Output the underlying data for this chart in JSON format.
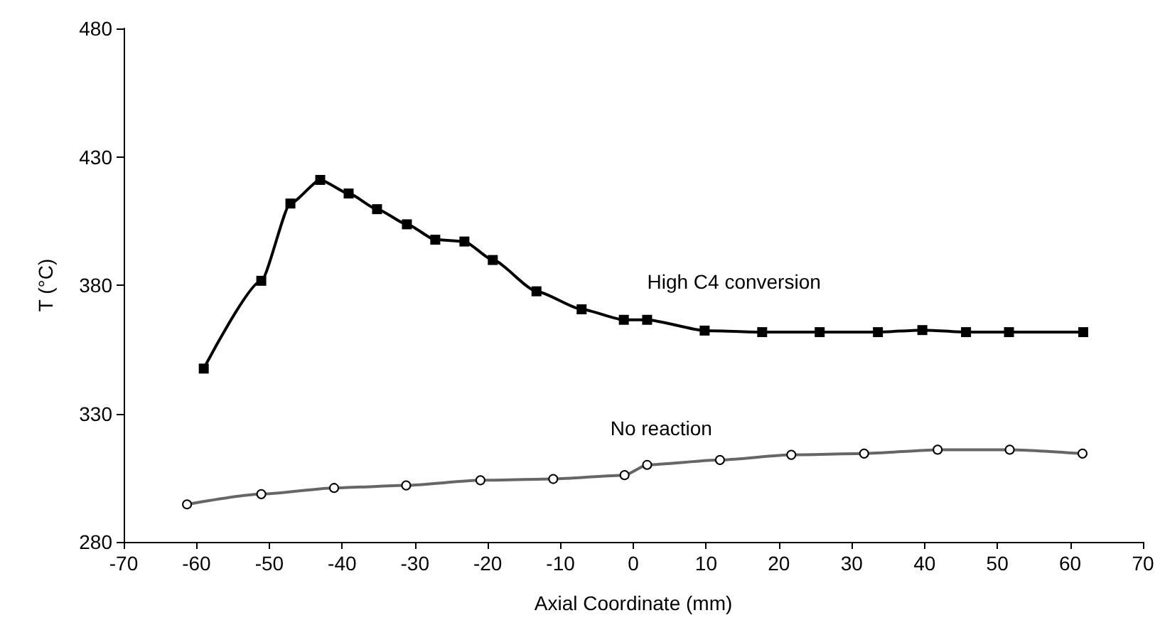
{
  "chart_data": {
    "type": "line",
    "xlabel": "Axial Coordinate (mm)",
    "ylabel": "T (°C)",
    "xlim": [
      -70,
      70
    ],
    "xticks": [
      -70,
      -60,
      -50,
      -40,
      -30,
      -20,
      -10,
      0,
      10,
      20,
      30,
      40,
      50,
      60,
      70
    ],
    "ylim": [
      280,
      480
    ],
    "yticks": [
      280,
      330,
      380,
      430,
      480
    ],
    "grid": false,
    "legend": false,
    "series": [
      {
        "name": "High C4 conversion",
        "color": "#000000",
        "marker": "square",
        "x": [
          -59.0,
          -51.1,
          -47.1,
          -43.0,
          -39.1,
          -35.2,
          -31.1,
          -27.2,
          -23.2,
          -19.3,
          -13.3,
          -7.1,
          -1.3,
          1.9,
          9.8,
          17.7,
          25.6,
          33.6,
          39.7,
          45.7,
          51.6,
          61.8
        ],
        "values": [
          347.5,
          381.7,
          411.8,
          421.0,
          415.7,
          409.6,
          403.7,
          397.7,
          397.0,
          389.8,
          377.6,
          370.6,
          366.5,
          366.5,
          362.3,
          361.7,
          361.7,
          361.7,
          362.5,
          361.7,
          361.7,
          361.7
        ]
      },
      {
        "name": "No reaction",
        "color": "#666666",
        "marker": "circle",
        "x": [
          -61.3,
          -51.1,
          -41.1,
          -31.2,
          -21.0,
          -11.0,
          -1.2,
          1.9,
          11.9,
          21.7,
          31.7,
          41.8,
          51.7,
          61.7
        ],
        "values": [
          294.6,
          298.6,
          301.0,
          302.0,
          304.0,
          304.5,
          306.0,
          310.0,
          311.9,
          313.9,
          314.4,
          315.9,
          315.9,
          314.4
        ]
      }
    ]
  }
}
